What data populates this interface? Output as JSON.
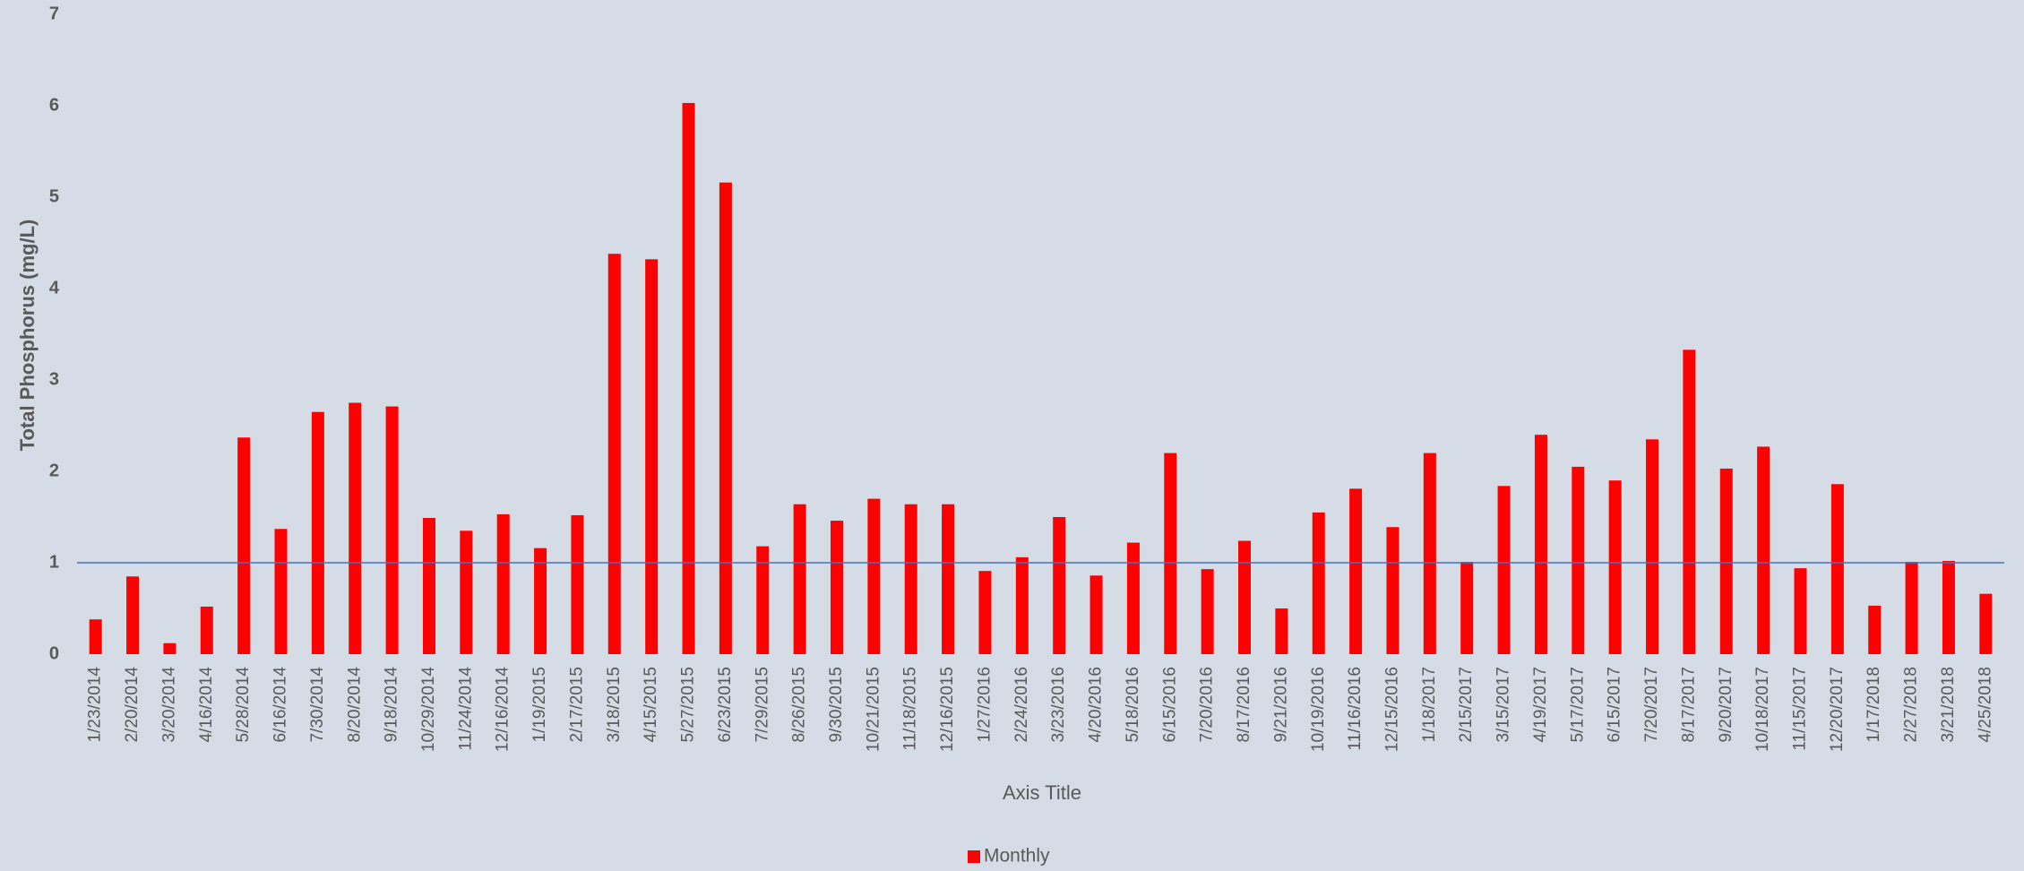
{
  "chart_data": {
    "type": "bar",
    "y_label": "Total Phosphorus (mg/L)",
    "x_label": "Axis Title",
    "categories": [
      "1/23/2014",
      "2/20/2014",
      "3/20/2014",
      "4/16/2014",
      "5/28/2014",
      "6/16/2014",
      "7/30/2014",
      "8/20/2014",
      "9/18/2014",
      "10/29/2014",
      "11/24/2014",
      "12/16/2014",
      "1/19/2015",
      "2/17/2015",
      "3/18/2015",
      "4/15/2015",
      "5/27/2015",
      "6/23/2015",
      "7/29/2015",
      "8/26/2015",
      "9/30/2015",
      "10/21/2015",
      "11/18/2015",
      "12/16/2015",
      "1/27/2016",
      "2/24/2016",
      "3/23/2016",
      "4/20/2016",
      "5/18/2016",
      "6/15/2016",
      "7/20/2016",
      "8/17/2016",
      "9/21/2016",
      "10/19/2016",
      "11/16/2016",
      "12/15/2016",
      "1/18/2017",
      "2/15/2017",
      "3/15/2017",
      "4/19/2017",
      "5/17/2017",
      "6/15/2017",
      "7/20/2017",
      "8/17/2017",
      "9/20/2017",
      "10/18/2017",
      "11/15/2017",
      "12/20/2017",
      "1/17/2018",
      "2/27/2018",
      "3/21/2018",
      "4/25/2018"
    ],
    "series": [
      {
        "name": "Monthly",
        "color": "#ff0000",
        "values": [
          0.38,
          0.85,
          0.12,
          0.52,
          2.37,
          1.37,
          2.65,
          2.75,
          2.71,
          1.49,
          1.35,
          1.53,
          1.16,
          1.52,
          4.38,
          4.32,
          6.03,
          5.16,
          1.18,
          1.64,
          1.46,
          1.7,
          1.64,
          1.64,
          0.91,
          1.06,
          1.5,
          0.86,
          1.22,
          2.2,
          0.93,
          1.24,
          0.5,
          1.55,
          1.81,
          1.39,
          2.2,
          1.01,
          1.84,
          2.4,
          2.05,
          1.9,
          2.35,
          3.33,
          2.03,
          2.27,
          0.94,
          1.86,
          0.53,
          1.01,
          1.02,
          0.66
        ]
      }
    ],
    "reference_line": {
      "value": 1,
      "color": "#4472c4"
    },
    "ylim": [
      0,
      7
    ],
    "yticks": [
      0,
      1,
      2,
      3,
      4,
      5,
      6,
      7
    ],
    "grid": false,
    "legend": "bottom"
  }
}
